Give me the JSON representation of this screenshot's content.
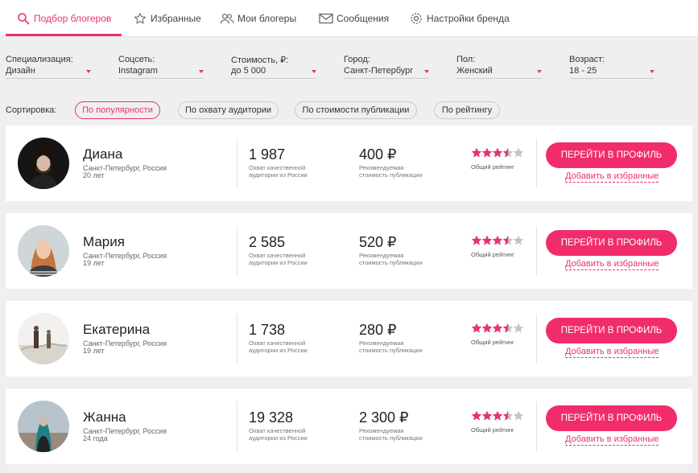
{
  "nav": {
    "tabs": [
      {
        "label": "Подбор блогеров",
        "icon": "search-icon",
        "active": true
      },
      {
        "label": "Избранные",
        "icon": "star-icon",
        "active": false
      },
      {
        "label": "Мои блогеры",
        "icon": "users-icon",
        "active": false
      },
      {
        "label": "Сообщения",
        "icon": "envelope-icon",
        "active": false
      },
      {
        "label": "Настройки бренда",
        "icon": "gear-icon",
        "active": false
      }
    ]
  },
  "filters": [
    {
      "label": "Специализация:",
      "value": "Дизайн"
    },
    {
      "label": "Соцсеть:",
      "value": "Instagram"
    },
    {
      "label": "Стоимость, ₽:",
      "value": "до 5 000"
    },
    {
      "label": "Город:",
      "value": "Санкт-Петербург"
    },
    {
      "label": "Пол:",
      "value": "Женский"
    },
    {
      "label": "Возраст:",
      "value": "18 - 25"
    }
  ],
  "sort": {
    "label": "Сортировка:",
    "options": [
      {
        "label": "По популярности",
        "active": true
      },
      {
        "label": "По охвату аудитории",
        "active": false
      },
      {
        "label": "По стоимости публикации",
        "active": false
      },
      {
        "label": "По рейтингу",
        "active": false
      }
    ]
  },
  "card_labels": {
    "audience_caption": "Охват качественной аудитории из России",
    "price_caption": "Рекомендуемая стоимость публикации",
    "rating_caption": "Общий рейтинг",
    "profile_button": "ПЕРЕЙТИ В ПРОФИЛЬ",
    "favorite_link": "Добавить в избранные"
  },
  "bloggers": [
    {
      "name": "Диана",
      "city": "Санкт-Петербург, Россия",
      "age": "20 лет",
      "audience": "1 987",
      "price": "400 ₽",
      "rating": 3.5
    },
    {
      "name": "Мария",
      "city": "Санкт-Петербург, Россия",
      "age": "19 лет",
      "audience": "2 585",
      "price": "520 ₽",
      "rating": 3.5
    },
    {
      "name": "Екатерина",
      "city": "Санкт-Петербург, Россия",
      "age": "19 лет",
      "audience": "1 738",
      "price": "280 ₽",
      "rating": 3.5
    },
    {
      "name": "Жанна",
      "city": "Санкт-Петербург, Россия",
      "age": "24 года",
      "audience": "19 328",
      "price": "2 300 ₽",
      "rating": 3.5
    }
  ],
  "colors": {
    "accent": "#e8336e",
    "button": "#f12c6b",
    "star_on": "#e8336e",
    "star_off": "#c4c4c8"
  }
}
